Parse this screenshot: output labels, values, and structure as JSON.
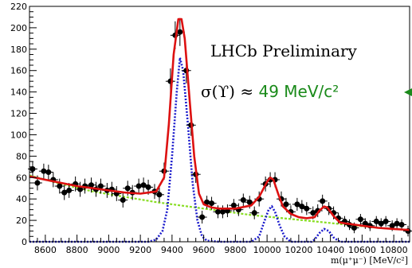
{
  "chart_data": {
    "type": "scatter",
    "xlabel": "m(μ⁺μ⁻) [MeV/c²]",
    "ylabel": "",
    "xlim": [
      8500,
      10900
    ],
    "ylim": [
      0,
      220
    ],
    "x_ticks": [
      "8600",
      "8800",
      "9000",
      "9200",
      "9400",
      "9600",
      "9800",
      "10000",
      "10200",
      "10400",
      "10600",
      "10800"
    ],
    "y_ticks": [
      "0",
      "20",
      "40",
      "60",
      "80",
      "100",
      "120",
      "140",
      "160",
      "180",
      "200",
      "220"
    ],
    "grid": false,
    "annotations": {
      "experiment": "LHCb Preliminary",
      "sigma_lhs": "σ(ϒ) ≈ ",
      "sigma_value": "49 MeV/c²"
    },
    "colors": {
      "data": "#000000",
      "total_fit": "#dd1111",
      "signal": "#1a1acc",
      "background": "#88dd22",
      "annotation_value": "#1a8a1a"
    },
    "series": [
      {
        "type": "scatter",
        "points": [
          {
            "x": 8520,
            "y": 68,
            "err": 7
          },
          {
            "x": 8550,
            "y": 55,
            "err": 7
          },
          {
            "x": 8590,
            "y": 66,
            "err": 7
          },
          {
            "x": 8620,
            "y": 65,
            "err": 7
          },
          {
            "x": 8650,
            "y": 58,
            "err": 7
          },
          {
            "x": 8690,
            "y": 52,
            "err": 7
          },
          {
            "x": 8720,
            "y": 46,
            "err": 7
          },
          {
            "x": 8750,
            "y": 48,
            "err": 7
          },
          {
            "x": 8790,
            "y": 54,
            "err": 7
          },
          {
            "x": 8820,
            "y": 49,
            "err": 7
          },
          {
            "x": 8850,
            "y": 52,
            "err": 7
          },
          {
            "x": 8890,
            "y": 53,
            "err": 7
          },
          {
            "x": 8920,
            "y": 49,
            "err": 7
          },
          {
            "x": 8950,
            "y": 52,
            "err": 7
          },
          {
            "x": 8990,
            "y": 48,
            "err": 7
          },
          {
            "x": 9020,
            "y": 49,
            "err": 7
          },
          {
            "x": 9050,
            "y": 45,
            "err": 7
          },
          {
            "x": 9090,
            "y": 39,
            "err": 7
          },
          {
            "x": 9120,
            "y": 50,
            "err": 7
          },
          {
            "x": 9150,
            "y": 46,
            "err": 7
          },
          {
            "x": 9190,
            "y": 52,
            "err": 7
          },
          {
            "x": 9220,
            "y": 53,
            "err": 7
          },
          {
            "x": 9250,
            "y": 51,
            "err": 7
          },
          {
            "x": 9290,
            "y": 47,
            "err": 7
          },
          {
            "x": 9320,
            "y": 44,
            "err": 7
          },
          {
            "x": 9350,
            "y": 66,
            "err": 8
          },
          {
            "x": 9390,
            "y": 150,
            "err": 12
          },
          {
            "x": 9420,
            "y": 193,
            "err": 13
          },
          {
            "x": 9450,
            "y": 196,
            "err": 13
          },
          {
            "x": 9490,
            "y": 160,
            "err": 12
          },
          {
            "x": 9520,
            "y": 109,
            "err": 10
          },
          {
            "x": 9550,
            "y": 63,
            "err": 8
          },
          {
            "x": 9590,
            "y": 23,
            "err": 6
          },
          {
            "x": 9620,
            "y": 37,
            "err": 6
          },
          {
            "x": 9650,
            "y": 36,
            "err": 6
          },
          {
            "x": 9690,
            "y": 28,
            "err": 6
          },
          {
            "x": 9720,
            "y": 28,
            "err": 6
          },
          {
            "x": 9750,
            "y": 29,
            "err": 6
          },
          {
            "x": 9790,
            "y": 34,
            "err": 6
          },
          {
            "x": 9820,
            "y": 30,
            "err": 6
          },
          {
            "x": 9850,
            "y": 39,
            "err": 6
          },
          {
            "x": 9890,
            "y": 37,
            "err": 6
          },
          {
            "x": 9920,
            "y": 27,
            "err": 6
          },
          {
            "x": 9950,
            "y": 40,
            "err": 7
          },
          {
            "x": 9990,
            "y": 54,
            "err": 7
          },
          {
            "x": 10020,
            "y": 58,
            "err": 7
          },
          {
            "x": 10050,
            "y": 58,
            "err": 7
          },
          {
            "x": 10090,
            "y": 40,
            "err": 7
          },
          {
            "x": 10120,
            "y": 35,
            "err": 6
          },
          {
            "x": 10150,
            "y": 28,
            "err": 6
          },
          {
            "x": 10190,
            "y": 35,
            "err": 6
          },
          {
            "x": 10220,
            "y": 33,
            "err": 6
          },
          {
            "x": 10250,
            "y": 31,
            "err": 6
          },
          {
            "x": 10290,
            "y": 27,
            "err": 6
          },
          {
            "x": 10320,
            "y": 29,
            "err": 6
          },
          {
            "x": 10350,
            "y": 38,
            "err": 6
          },
          {
            "x": 10390,
            "y": 31,
            "err": 6
          },
          {
            "x": 10420,
            "y": 27,
            "err": 6
          },
          {
            "x": 10450,
            "y": 22,
            "err": 5
          },
          {
            "x": 10490,
            "y": 19,
            "err": 5
          },
          {
            "x": 10520,
            "y": 16,
            "err": 5
          },
          {
            "x": 10550,
            "y": 13,
            "err": 5
          },
          {
            "x": 10590,
            "y": 21,
            "err": 5
          },
          {
            "x": 10620,
            "y": 17,
            "err": 5
          },
          {
            "x": 10650,
            "y": 15,
            "err": 5
          },
          {
            "x": 10690,
            "y": 19,
            "err": 5
          },
          {
            "x": 10720,
            "y": 17,
            "err": 5
          },
          {
            "x": 10750,
            "y": 19,
            "err": 5
          },
          {
            "x": 10790,
            "y": 15,
            "err": 5
          },
          {
            "x": 10820,
            "y": 17,
            "err": 5
          },
          {
            "x": 10850,
            "y": 16,
            "err": 5
          },
          {
            "x": 10890,
            "y": 10,
            "err": 5
          }
        ]
      },
      {
        "type": "line",
        "style": "solid",
        "points": [
          [
            8500,
            61
          ],
          [
            8600,
            58
          ],
          [
            8700,
            55
          ],
          [
            8800,
            52
          ],
          [
            8900,
            50
          ],
          [
            9000,
            48
          ],
          [
            9100,
            46
          ],
          [
            9200,
            45
          ],
          [
            9300,
            47
          ],
          [
            9350,
            60
          ],
          [
            9380,
            110
          ],
          [
            9410,
            175
          ],
          [
            9440,
            208
          ],
          [
            9460,
            208
          ],
          [
            9480,
            190
          ],
          [
            9510,
            135
          ],
          [
            9540,
            80
          ],
          [
            9570,
            45
          ],
          [
            9600,
            35
          ],
          [
            9650,
            32
          ],
          [
            9700,
            31
          ],
          [
            9800,
            31
          ],
          [
            9900,
            34
          ],
          [
            9950,
            42
          ],
          [
            10000,
            56
          ],
          [
            10020,
            60
          ],
          [
            10040,
            58
          ],
          [
            10070,
            45
          ],
          [
            10100,
            33
          ],
          [
            10150,
            26
          ],
          [
            10200,
            23
          ],
          [
            10250,
            22
          ],
          [
            10300,
            23
          ],
          [
            10330,
            29
          ],
          [
            10360,
            33
          ],
          [
            10380,
            32
          ],
          [
            10420,
            24
          ],
          [
            10460,
            18
          ],
          [
            10500,
            17
          ],
          [
            10600,
            15
          ],
          [
            10700,
            13
          ],
          [
            10800,
            12
          ],
          [
            10900,
            11
          ]
        ]
      },
      {
        "type": "line",
        "style": "dotted",
        "points": [
          [
            8500,
            0
          ],
          [
            9250,
            0
          ],
          [
            9300,
            2
          ],
          [
            9340,
            10
          ],
          [
            9370,
            30
          ],
          [
            9400,
            80
          ],
          [
            9430,
            140
          ],
          [
            9450,
            172
          ],
          [
            9470,
            160
          ],
          [
            9500,
            110
          ],
          [
            9530,
            55
          ],
          [
            9560,
            20
          ],
          [
            9590,
            5
          ],
          [
            9620,
            1
          ],
          [
            9700,
            0
          ],
          [
            9900,
            0
          ],
          [
            9950,
            5
          ],
          [
            9980,
            18
          ],
          [
            10010,
            30
          ],
          [
            10030,
            33
          ],
          [
            10050,
            28
          ],
          [
            10080,
            15
          ],
          [
            10110,
            5
          ],
          [
            10150,
            0
          ],
          [
            10280,
            0
          ],
          [
            10300,
            2
          ],
          [
            10330,
            8
          ],
          [
            10360,
            12
          ],
          [
            10390,
            10
          ],
          [
            10420,
            4
          ],
          [
            10460,
            0
          ],
          [
            10900,
            0
          ]
        ]
      },
      {
        "type": "line",
        "style": "dashed",
        "points": [
          [
            8500,
            62
          ],
          [
            8700,
            54
          ],
          [
            8900,
            47
          ],
          [
            9100,
            42
          ],
          [
            9300,
            37
          ],
          [
            9500,
            33
          ],
          [
            9700,
            29
          ],
          [
            9900,
            25
          ],
          [
            10100,
            22
          ],
          [
            10300,
            19
          ],
          [
            10500,
            16
          ],
          [
            10700,
            13
          ],
          [
            10900,
            11
          ]
        ]
      }
    ]
  }
}
